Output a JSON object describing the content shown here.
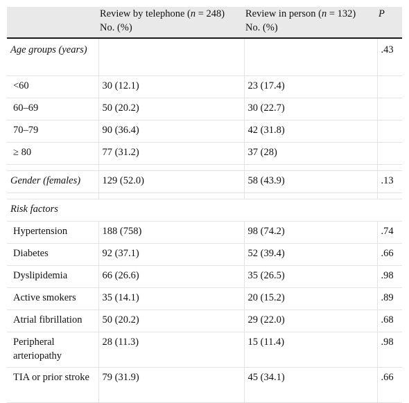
{
  "table": {
    "header": {
      "col1": "",
      "col2_pre": "Review by telephone (",
      "col2_n": "n",
      "col2_post": " = 248)",
      "col2_line2": "No. (%)",
      "col3_pre": "Review in person (",
      "col3_n": "n",
      "col3_post": " = 132)",
      "col3_line2": "No. (%)",
      "col4": "P"
    },
    "age": {
      "label": "Age groups (years)",
      "p": ".43",
      "rows": [
        {
          "label": "<60",
          "tel": "30 (12.1)",
          "person": "23 (17.4)",
          "p": ""
        },
        {
          "label": "60–69",
          "tel": "50 (20.2)",
          "person": "30 (22.7)",
          "p": ""
        },
        {
          "label": "70–79",
          "tel": "90 (36.4)",
          "person": "42 (31.8)",
          "p": ""
        },
        {
          "label": "≥ 80",
          "tel": "77 (31.2)",
          "person": "37 (28)",
          "p": ""
        }
      ]
    },
    "gender": {
      "label": "Gender (females)",
      "tel": "129 (52.0)",
      "person": "58 (43.9)",
      "p": ".13"
    },
    "risk": {
      "label": "Risk factors",
      "rows": [
        {
          "label": "Hypertension",
          "tel": "188 (758)",
          "person": "98 (74.2)",
          "p": ".74"
        },
        {
          "label": "Diabetes",
          "tel": "92 (37.1)",
          "person": "52 (39.4)",
          "p": ".66"
        },
        {
          "label": "Dyslipidemia",
          "tel": "66 (26.6)",
          "person": "35 (26.5)",
          "p": ".98"
        },
        {
          "label": "Active smokers",
          "tel": "35 (14.1)",
          "person": "20 (15.2)",
          "p": ".89"
        },
        {
          "label": "Atrial fibrillation",
          "tel": "50 (20.2)",
          "person": "29 (22.0)",
          "p": ".68"
        },
        {
          "label": "Peripheral arteriopathy",
          "tel": "28 (11.3)",
          "person": "15 (11.4)",
          "p": ".98"
        },
        {
          "label": "TIA or prior stroke",
          "tel": "79 (31.9)",
          "person": "45 (34.1)",
          "p": ".66"
        }
      ]
    }
  }
}
